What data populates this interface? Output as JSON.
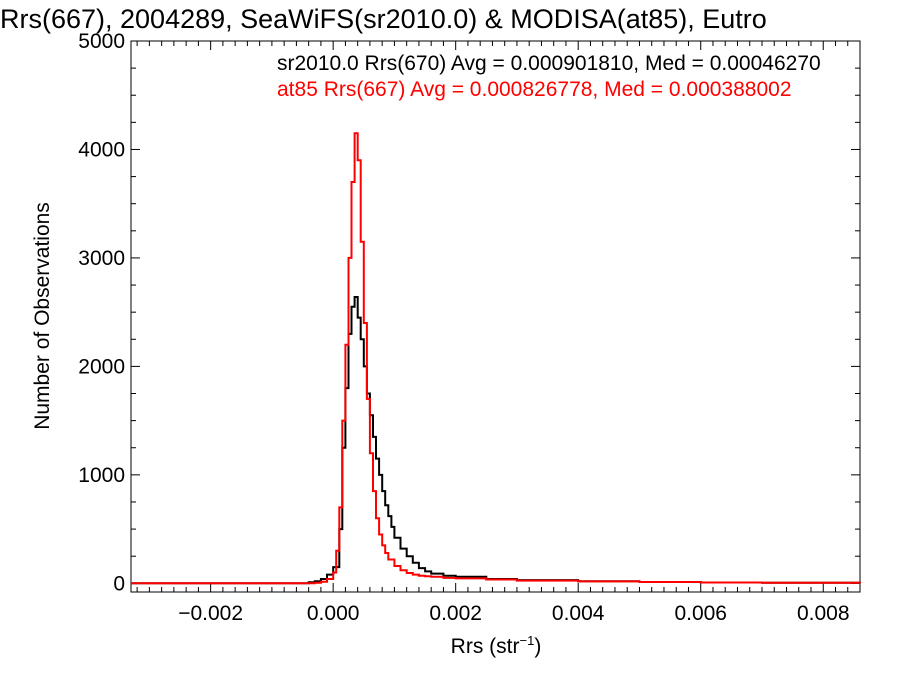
{
  "chart_data": {
    "type": "line",
    "title": "Rrs(667), 2004289, SeaWiFS(sr2010.0) & MODISA(at85), Eutro",
    "xlabel": "Rrs (str",
    "xlabel_sup": "−1",
    "xlabel_end": ")",
    "ylabel": "Number of Observations",
    "xlim": [
      -0.0033,
      0.0086
    ],
    "ylim": [
      -80,
      5000
    ],
    "xticks": [
      -0.002,
      0.0,
      0.002,
      0.004,
      0.006,
      0.008
    ],
    "xtick_labels": [
      "−0.002",
      "0.000",
      "0.002",
      "0.004",
      "0.006",
      "0.008"
    ],
    "yticks": [
      0,
      1000,
      2000,
      3000,
      4000,
      5000
    ],
    "ytick_labels": [
      "0",
      "1000",
      "2000",
      "3000",
      "4000",
      "5000"
    ],
    "grid": false,
    "annotations": [
      {
        "text": "sr2010.0 Rrs(670) Avg = 0.000901810, Med = 0.00046270",
        "color": "#000000"
      },
      {
        "text": "at85 Rrs(667) Avg = 0.000826778, Med = 0.000388002",
        "color": "#ff0000"
      }
    ],
    "series": [
      {
        "color": "#000000",
        "x": [
          -0.0033,
          -0.0006,
          -0.0004,
          -0.0003,
          -0.0002,
          -0.0001,
          0.0,
          0.0001,
          0.00015,
          0.0002,
          0.00025,
          0.0003,
          0.00035,
          0.0004,
          0.00045,
          0.0005,
          0.00055,
          0.0006,
          0.00065,
          0.0007,
          0.00075,
          0.0008,
          0.00085,
          0.0009,
          0.00095,
          0.001,
          0.0011,
          0.0012,
          0.0013,
          0.0014,
          0.0015,
          0.0016,
          0.0018,
          0.002,
          0.0025,
          0.003,
          0.004,
          0.005,
          0.006,
          0.007,
          0.0086
        ],
        "values": [
          0,
          0,
          10,
          20,
          40,
          80,
          150,
          500,
          1250,
          1800,
          2300,
          2550,
          2640,
          2450,
          2250,
          2000,
          1750,
          1550,
          1350,
          1150,
          1000,
          850,
          720,
          620,
          520,
          420,
          320,
          250,
          190,
          140,
          110,
          90,
          70,
          60,
          40,
          30,
          20,
          12,
          8,
          5,
          2
        ]
      },
      {
        "color": "#ff0000",
        "x": [
          -0.0033,
          -0.0004,
          -0.0003,
          -0.0002,
          -0.0001,
          0.0,
          5e-05,
          0.0001,
          0.00015,
          0.0002,
          0.00025,
          0.0003,
          0.00035,
          0.0004,
          0.00045,
          0.0005,
          0.00055,
          0.0006,
          0.00065,
          0.0007,
          0.00075,
          0.0008,
          0.00085,
          0.0009,
          0.001,
          0.0011,
          0.0012,
          0.0013,
          0.0014,
          0.0015,
          0.0016,
          0.0018,
          0.002,
          0.0025,
          0.003,
          0.004,
          0.005,
          0.006,
          0.007,
          0.0086
        ],
        "values": [
          0,
          0,
          5,
          15,
          40,
          100,
          300,
          700,
          1500,
          2200,
          3000,
          3700,
          4150,
          3900,
          3150,
          2400,
          1700,
          1200,
          850,
          600,
          450,
          350,
          280,
          220,
          160,
          120,
          95,
          80,
          70,
          65,
          60,
          50,
          45,
          35,
          25,
          18,
          12,
          8,
          5,
          2
        ]
      }
    ]
  }
}
